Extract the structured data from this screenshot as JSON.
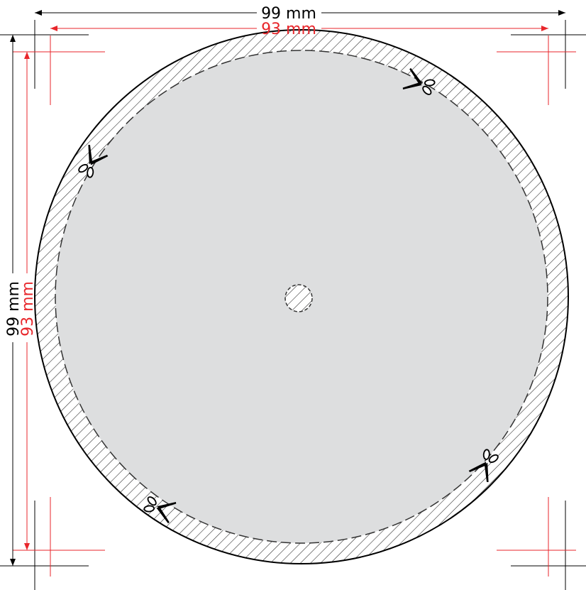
{
  "dimensions": {
    "outer_width_label": "99 mm",
    "inner_width_label": "93 mm",
    "outer_height_label": "99 mm",
    "inner_height_label": "93 mm"
  },
  "colors": {
    "outer_line": "#000000",
    "inner_line": "#e8262b",
    "disc_fill": "#dddedf",
    "hatch": "#333333"
  },
  "icons": [
    "scissors-icon",
    "scissors-icon",
    "scissors-icon",
    "scissors-icon"
  ]
}
